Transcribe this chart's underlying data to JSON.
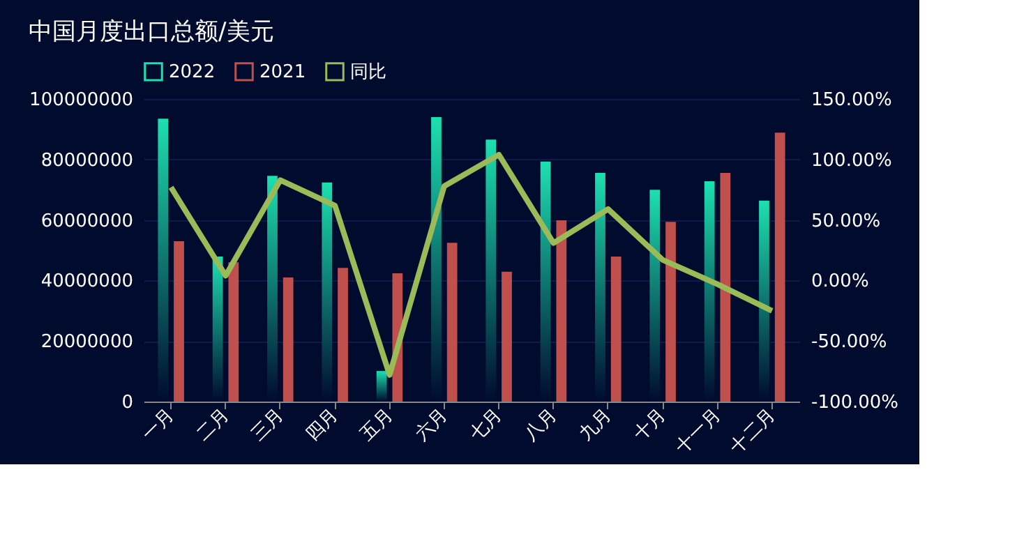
{
  "chart_data": {
    "type": "bar",
    "title": "中国月度出口总额/美元",
    "categories": [
      "一月",
      "二月",
      "三月",
      "四月",
      "五月",
      "六月",
      "七月",
      "八月",
      "九月",
      "十月",
      "十一月",
      "十二月"
    ],
    "series": [
      {
        "name": "2022",
        "color": "#1de0b0",
        "values": [
          93500000,
          47900000,
          74600000,
          72400000,
          10100000,
          94000000,
          86600000,
          79300000,
          75600000,
          70000000,
          72800000,
          66400000
        ]
      },
      {
        "name": "2021",
        "color": "#c0504d",
        "values": [
          53000000,
          46000000,
          41000000,
          44200000,
          42400000,
          52500000,
          42900000,
          59900000,
          47900000,
          59400000,
          75600000,
          88900000
        ]
      },
      {
        "name": "同比",
        "type": "line",
        "axis": "y2",
        "color": "#9bbb59",
        "values": [
          77,
          4,
          83,
          62,
          -78,
          78,
          104,
          31,
          59,
          17,
          -3,
          -25
        ]
      }
    ],
    "ylim": [
      0,
      100000000
    ],
    "yticks": [
      0,
      20000000,
      40000000,
      60000000,
      80000000,
      100000000
    ],
    "y2lim": [
      -100,
      150
    ],
    "y2ticks": [
      {
        "value": -100,
        "label": "-100.00%"
      },
      {
        "value": -50,
        "label": "-50.00%"
      },
      {
        "value": 0,
        "label": "0.00%"
      },
      {
        "value": 50,
        "label": "50.00%"
      },
      {
        "value": 100,
        "label": "100.00%"
      },
      {
        "value": 150,
        "label": "150.00%"
      }
    ],
    "grid": "y",
    "legend": "top",
    "marker": "none",
    "line_style": "solid"
  }
}
